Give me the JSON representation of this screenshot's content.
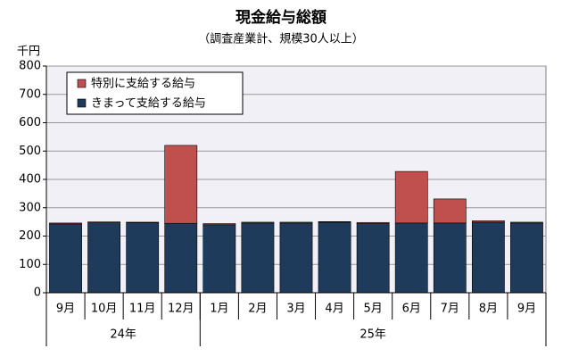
{
  "chart_data": {
    "type": "stacked_bar",
    "title": "現金給与総額",
    "subtitle": "（調査産業計、規模30人以上）",
    "y_label": "千円",
    "categories": [
      "9月",
      "10月",
      "11月",
      "12月",
      "1月",
      "2月",
      "3月",
      "4月",
      "5月",
      "6月",
      "7月",
      "8月",
      "9月"
    ],
    "groups": [
      {
        "label": "24年",
        "span": 4
      },
      {
        "label": "25年",
        "span": 9
      }
    ],
    "series": [
      {
        "name": "きまって支給する給与",
        "color": "#1f3b5c",
        "values": [
          243,
          247,
          247,
          245,
          240,
          246,
          246,
          249,
          244,
          246,
          246,
          249,
          246
        ]
      },
      {
        "name": "特別に支給する給与",
        "color": "#c0504d",
        "values": [
          3,
          3,
          2,
          275,
          4,
          3,
          3,
          2,
          4,
          182,
          85,
          5,
          3
        ]
      }
    ],
    "ylim": [
      0,
      800
    ],
    "yticks": [
      0,
      100,
      200,
      300,
      400,
      500,
      600,
      700,
      800
    ],
    "grid": true
  }
}
